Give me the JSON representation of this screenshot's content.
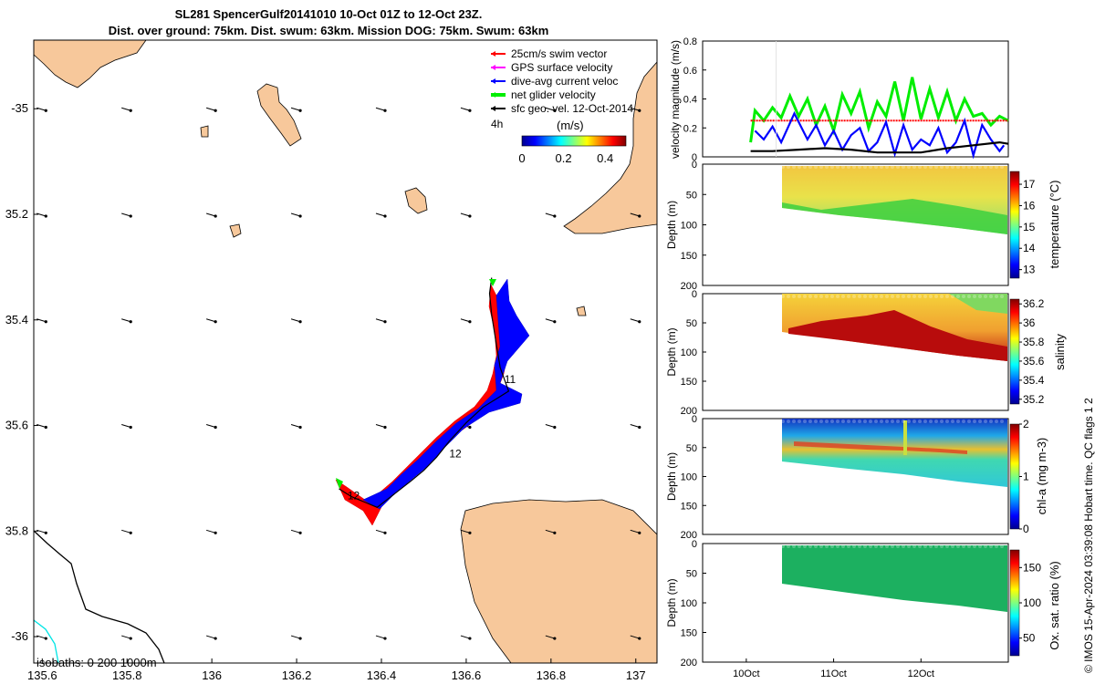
{
  "header": {
    "title_line1": "SL281 SpencerGulf20141010 10-Oct 01Z to 12-Oct 23Z.",
    "title_line2": "Dist. over ground: 75km. Dist. swum: 63km. Mission DOG: 75km. Swum: 63km"
  },
  "credit": "© IMOS 15-Apr-2024 03:39:08 Hobart time. QC flags 1  2",
  "colors": {
    "land": "#f7c89b",
    "swim_vector": "#ff0000",
    "gps_velocity": "#ff00ff",
    "dive_avg": "#0000ff",
    "net_velocity": "#00ee00",
    "sfc_geo": "#000000",
    "isobath_0": "#000000",
    "isobath_200": "#00e5e5"
  },
  "chart_data": [
    {
      "type": "scatter",
      "id": "map",
      "x": {
        "ticks": [
          "135.6",
          "135.8",
          "136",
          "136.2",
          "136.4",
          "136.6",
          "136.8",
          "137"
        ],
        "range": [
          135.58,
          137.05
        ]
      },
      "y": {
        "ticks": [
          "-35",
          "35.2",
          "35.4",
          "35.6",
          "35.8",
          "-36"
        ],
        "range": [
          -36.05,
          -34.87
        ]
      },
      "legend": {
        "placement": "top-right",
        "items": [
          {
            "label": "25cm/s swim vector",
            "color": "#ff0000"
          },
          {
            "label": "GPS surface velocity",
            "color": "#ff00ff"
          },
          {
            "label": "dive-avg current veloc",
            "color": "#0000ff"
          },
          {
            "label": "net glider velocity",
            "color": "#00ee00"
          },
          {
            "label": "sfc geo. vel. 12-Oct-2014",
            "color": "#000000"
          }
        ],
        "time_label": "4h"
      },
      "colorbar": {
        "label": "(m/s)",
        "ticks": [
          "0",
          "0.2",
          "0.4"
        ],
        "range": [
          0,
          0.5
        ]
      },
      "day_labels": [
        {
          "text": "11",
          "lon": 136.69,
          "lat": -35.52
        },
        {
          "text": "12",
          "lon": 136.56,
          "lat": -35.66
        },
        {
          "text": "12",
          "lon": 136.32,
          "lat": -35.74
        }
      ],
      "track": [
        [
          136.3,
          -35.72
        ],
        [
          136.33,
          -35.735
        ],
        [
          136.36,
          -35.745
        ],
        [
          136.39,
          -35.755
        ],
        [
          136.43,
          -35.73
        ],
        [
          136.47,
          -35.705
        ],
        [
          136.5,
          -35.685
        ],
        [
          136.53,
          -35.66
        ],
        [
          136.56,
          -35.63
        ],
        [
          136.6,
          -35.595
        ],
        [
          136.64,
          -35.565
        ],
        [
          136.68,
          -35.545
        ],
        [
          136.7,
          -35.535
        ],
        [
          136.68,
          -35.49
        ],
        [
          136.67,
          -35.44
        ],
        [
          136.66,
          -35.39
        ],
        [
          136.655,
          -35.35
        ],
        [
          136.66,
          -35.32
        ]
      ],
      "isobath_label": "isobaths: 0   200  1000m",
      "arrow_grid": {
        "lons": [
          135.6,
          135.8,
          136,
          136.2,
          136.4,
          136.6,
          136.8,
          137
        ],
        "lats": [
          -35.0,
          -35.2,
          -35.4,
          -35.6,
          -35.8,
          -36.0
        ]
      }
    },
    {
      "type": "line",
      "id": "velocity",
      "ylabel": "velocity magnitude (m/s)",
      "yticks": [
        "0",
        "0.2",
        "0.4",
        "0.6",
        "0.8"
      ],
      "ylim": [
        0,
        0.8
      ],
      "xlim": [
        "09-Oct 12:00",
        "13-Oct 00:00"
      ],
      "series": [
        {
          "name": "net glider velocity",
          "color": "#00ee00",
          "x": [
            10.05,
            10.1,
            10.2,
            10.3,
            10.4,
            10.5,
            10.6,
            10.7,
            10.8,
            10.9,
            11.0,
            11.1,
            11.2,
            11.3,
            11.4,
            11.5,
            11.6,
            11.7,
            11.8,
            11.9,
            12.0,
            12.1,
            12.2,
            12.3,
            12.4,
            12.5,
            12.6,
            12.7,
            12.8,
            12.9,
            13.0
          ],
          "values": [
            0.1,
            0.32,
            0.25,
            0.34,
            0.27,
            0.42,
            0.28,
            0.4,
            0.22,
            0.35,
            0.18,
            0.43,
            0.3,
            0.45,
            0.2,
            0.38,
            0.28,
            0.52,
            0.25,
            0.55,
            0.26,
            0.47,
            0.27,
            0.45,
            0.25,
            0.4,
            0.28,
            0.3,
            0.22,
            0.28,
            0.25
          ]
        },
        {
          "name": "25cm/s swim vector",
          "color": "#ff0000",
          "x": [
            10.05,
            13.0
          ],
          "values": [
            0.25,
            0.25
          ]
        },
        {
          "name": "dive-avg current veloc",
          "color": "#0000ff",
          "x": [
            10.1,
            10.2,
            10.3,
            10.4,
            10.55,
            10.7,
            10.8,
            10.9,
            11.0,
            11.1,
            11.2,
            11.3,
            11.4,
            11.5,
            11.6,
            11.7,
            11.8,
            11.9,
            12.0,
            12.1,
            12.2,
            12.3,
            12.4,
            12.5,
            12.6,
            12.7,
            12.8,
            12.9,
            12.95
          ],
          "values": [
            0.18,
            0.12,
            0.21,
            0.1,
            0.3,
            0.12,
            0.22,
            0.08,
            0.18,
            0.05,
            0.15,
            0.2,
            0.04,
            0.1,
            0.24,
            0.02,
            0.22,
            0.05,
            0.12,
            0.08,
            0.2,
            0.03,
            0.1,
            0.25,
            0.01,
            0.22,
            0.12,
            0.04,
            0.08
          ]
        },
        {
          "name": "sfc geo. vel.",
          "color": "#000000",
          "x": [
            10.05,
            10.3,
            10.6,
            10.9,
            11.2,
            11.5,
            11.8,
            12.0,
            12.3,
            12.6,
            12.9,
            13.0
          ],
          "values": [
            0.04,
            0.04,
            0.05,
            0.06,
            0.05,
            0.03,
            0.03,
            0.03,
            0.06,
            0.08,
            0.1,
            0.09
          ]
        }
      ]
    },
    {
      "type": "heatmap",
      "id": "temperature",
      "ylabel": "Depth (m)",
      "yticks": [
        "0",
        "50",
        "100",
        "150",
        "200"
      ],
      "colorbar_label": "temperature (°C)",
      "colorbar_ticks": [
        "13",
        "14",
        "15",
        "16",
        "17"
      ],
      "clim": [
        12.6,
        17.6
      ]
    },
    {
      "type": "heatmap",
      "id": "salinity",
      "ylabel": "Depth (m)",
      "yticks": [
        "0",
        "50",
        "100",
        "150",
        "200"
      ],
      "colorbar_label": "salinity",
      "colorbar_ticks": [
        "35.2",
        "35.4",
        "35.6",
        "35.8",
        "36",
        "36.2"
      ],
      "clim": [
        35.15,
        36.25
      ]
    },
    {
      "type": "heatmap",
      "id": "chla",
      "ylabel": "Depth (m)",
      "yticks": [
        "0",
        "50",
        "100",
        "150",
        "200"
      ],
      "colorbar_label": "chl-a (mg m-3)",
      "colorbar_ticks": [
        "0",
        "1",
        "2"
      ],
      "clim": [
        0,
        2
      ]
    },
    {
      "type": "heatmap",
      "id": "oxygen",
      "ylabel": "Depth (m)",
      "yticks": [
        "0",
        "50",
        "100",
        "150",
        "200"
      ],
      "colorbar_label": "Ox. sat. ratio (%)",
      "colorbar_ticks": [
        "50",
        "100",
        "150"
      ],
      "clim": [
        25,
        175
      ],
      "xticks": [
        "10Oct",
        "11Oct",
        "12Oct"
      ]
    }
  ]
}
